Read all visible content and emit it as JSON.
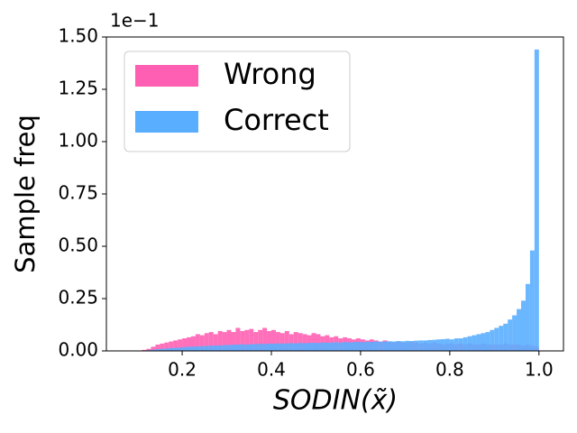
{
  "chart_data": {
    "type": "histogram",
    "xlabel": "SODIN(x̃)",
    "ylabel": "Sample freq",
    "y_offset_label": "1e−1",
    "bins": [
      0.1,
      0.11,
      0.12,
      0.13,
      0.14,
      0.15,
      0.16,
      0.17,
      0.18,
      0.19,
      0.2,
      0.21,
      0.22,
      0.23,
      0.24,
      0.25,
      0.26,
      0.27,
      0.28,
      0.29,
      0.3,
      0.31,
      0.32,
      0.33,
      0.34,
      0.35,
      0.36,
      0.37,
      0.38,
      0.39,
      0.4,
      0.41,
      0.42,
      0.43,
      0.44,
      0.45,
      0.46,
      0.47,
      0.48,
      0.49,
      0.5,
      0.51,
      0.52,
      0.53,
      0.54,
      0.55,
      0.56,
      0.57,
      0.58,
      0.59,
      0.6,
      0.61,
      0.62,
      0.63,
      0.64,
      0.65,
      0.66,
      0.67,
      0.68,
      0.69,
      0.7,
      0.71,
      0.72,
      0.73,
      0.74,
      0.75,
      0.76,
      0.77,
      0.78,
      0.79,
      0.8,
      0.81,
      0.82,
      0.83,
      0.84,
      0.85,
      0.86,
      0.87,
      0.88,
      0.89,
      0.9,
      0.91,
      0.92,
      0.93,
      0.94,
      0.95,
      0.96,
      0.97,
      0.98,
      0.99,
      1.0
    ],
    "series": [
      {
        "name": "Wrong",
        "color": "#ff5fb2",
        "values": [
          0.002,
          0.005,
          0.01,
          0.02,
          0.03,
          0.035,
          0.04,
          0.045,
          0.05,
          0.055,
          0.06,
          0.065,
          0.07,
          0.08,
          0.075,
          0.085,
          0.09,
          0.08,
          0.095,
          0.09,
          0.1,
          0.09,
          0.11,
          0.095,
          0.1,
          0.105,
          0.09,
          0.1,
          0.11,
          0.095,
          0.1,
          0.09,
          0.085,
          0.095,
          0.08,
          0.09,
          0.085,
          0.08,
          0.075,
          0.085,
          0.08,
          0.07,
          0.075,
          0.065,
          0.07,
          0.06,
          0.065,
          0.06,
          0.055,
          0.06,
          0.055,
          0.05,
          0.055,
          0.05,
          0.045,
          0.05,
          0.045,
          0.04,
          0.045,
          0.04,
          0.04,
          0.045,
          0.04,
          0.035,
          0.04,
          0.035,
          0.04,
          0.035,
          0.03,
          0.035,
          0.035,
          0.03,
          0.035,
          0.03,
          0.035,
          0.03,
          0.03,
          0.035,
          0.03,
          0.03,
          0.03,
          0.03,
          0.035,
          0.03,
          0.03,
          0.03,
          0.025,
          0.03,
          0.025,
          0.02
        ]
      },
      {
        "name": "Correct",
        "color": "#5aaeff",
        "values": [
          0.001,
          0.002,
          0.004,
          0.006,
          0.008,
          0.01,
          0.012,
          0.014,
          0.015,
          0.016,
          0.018,
          0.02,
          0.02,
          0.022,
          0.022,
          0.024,
          0.025,
          0.026,
          0.026,
          0.028,
          0.028,
          0.03,
          0.03,
          0.032,
          0.03,
          0.033,
          0.032,
          0.034,
          0.033,
          0.035,
          0.034,
          0.036,
          0.035,
          0.036,
          0.037,
          0.036,
          0.038,
          0.037,
          0.038,
          0.039,
          0.038,
          0.04,
          0.039,
          0.04,
          0.041,
          0.04,
          0.042,
          0.041,
          0.042,
          0.043,
          0.042,
          0.044,
          0.043,
          0.045,
          0.044,
          0.045,
          0.046,
          0.045,
          0.047,
          0.046,
          0.048,
          0.047,
          0.049,
          0.05,
          0.05,
          0.052,
          0.053,
          0.055,
          0.056,
          0.058,
          0.055,
          0.06,
          0.06,
          0.065,
          0.07,
          0.075,
          0.08,
          0.085,
          0.09,
          0.1,
          0.11,
          0.12,
          0.13,
          0.15,
          0.17,
          0.2,
          0.24,
          0.32,
          0.48,
          1.44
        ]
      }
    ],
    "xlim": [
      0.03,
      1.055
    ],
    "ylim": [
      0,
      1.5
    ],
    "xticks": [
      0.2,
      0.4,
      0.6,
      0.8,
      {
        "value": 1,
        "label": "1.0"
      }
    ],
    "yticks": [
      {
        "value": 0,
        "label": "0.00"
      },
      {
        "value": 0.25,
        "label": "0.25"
      },
      {
        "value": 0.5,
        "label": "0.50"
      },
      {
        "value": 0.75,
        "label": "0.75"
      },
      {
        "value": 1,
        "label": "1.00"
      },
      {
        "value": 1.25,
        "label": "1.25"
      },
      {
        "value": 1.5,
        "label": "1.50"
      }
    ],
    "legend": "upper left"
  }
}
